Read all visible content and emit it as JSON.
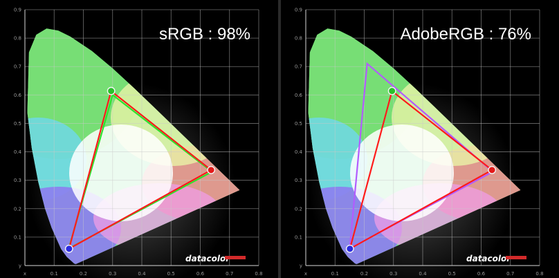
{
  "colors": {
    "background": "#000000",
    "srgb_line": "#2ee22e",
    "display_line": "#ff1b1b",
    "adobe_line": "#b25cff",
    "brand_bar": "#d22a2a"
  },
  "icons": {
    "brand_bar": "red-bar-icon",
    "primary_marker": "primary-dot-icon"
  },
  "chart_data": [
    {
      "type": "scatter",
      "title": "sRGB : 98%",
      "brand": "datacolor",
      "x_ticks": [
        "x",
        "0.1",
        "0.2",
        "0.3",
        "0.4",
        "0.5",
        "0.6",
        "0.7",
        "0.8"
      ],
      "y_ticks": [
        "y",
        "0.1",
        "0.2",
        "0.3",
        "0.4",
        "0.5",
        "0.6",
        "0.7",
        "0.8",
        "0.9"
      ],
      "xlim": [
        0,
        0.8
      ],
      "ylim": [
        0,
        0.9
      ],
      "grid": true,
      "series": [
        {
          "role": "reference",
          "color": "#2ee22e",
          "points": [
            [
              0.64,
              0.33
            ],
            [
              0.3,
              0.6
            ],
            [
              0.15,
              0.06
            ]
          ]
        },
        {
          "role": "measured",
          "color": "#ff1b1b",
          "points": [
            [
              0.637,
              0.336
            ],
            [
              0.295,
              0.614
            ],
            [
              0.151,
              0.059
            ]
          ]
        }
      ]
    },
    {
      "type": "scatter",
      "title": "AdobeRGB : 76%",
      "brand": "datacolor",
      "x_ticks": [
        "x",
        "0.1",
        "0.2",
        "0.3",
        "0.4",
        "0.5",
        "0.6",
        "0.7",
        "0.8"
      ],
      "y_ticks": [
        "y",
        "0.1",
        "0.2",
        "0.3",
        "0.4",
        "0.5",
        "0.6",
        "0.7",
        "0.8",
        "0.9"
      ],
      "xlim": [
        0,
        0.8
      ],
      "ylim": [
        0,
        0.9
      ],
      "grid": true,
      "series": [
        {
          "role": "reference",
          "color": "#b25cff",
          "points": [
            [
              0.64,
              0.33
            ],
            [
              0.21,
              0.71
            ],
            [
              0.15,
              0.06
            ]
          ]
        },
        {
          "role": "measured",
          "color": "#ff1b1b",
          "points": [
            [
              0.637,
              0.336
            ],
            [
              0.295,
              0.614
            ],
            [
              0.151,
              0.059
            ]
          ]
        }
      ]
    }
  ]
}
